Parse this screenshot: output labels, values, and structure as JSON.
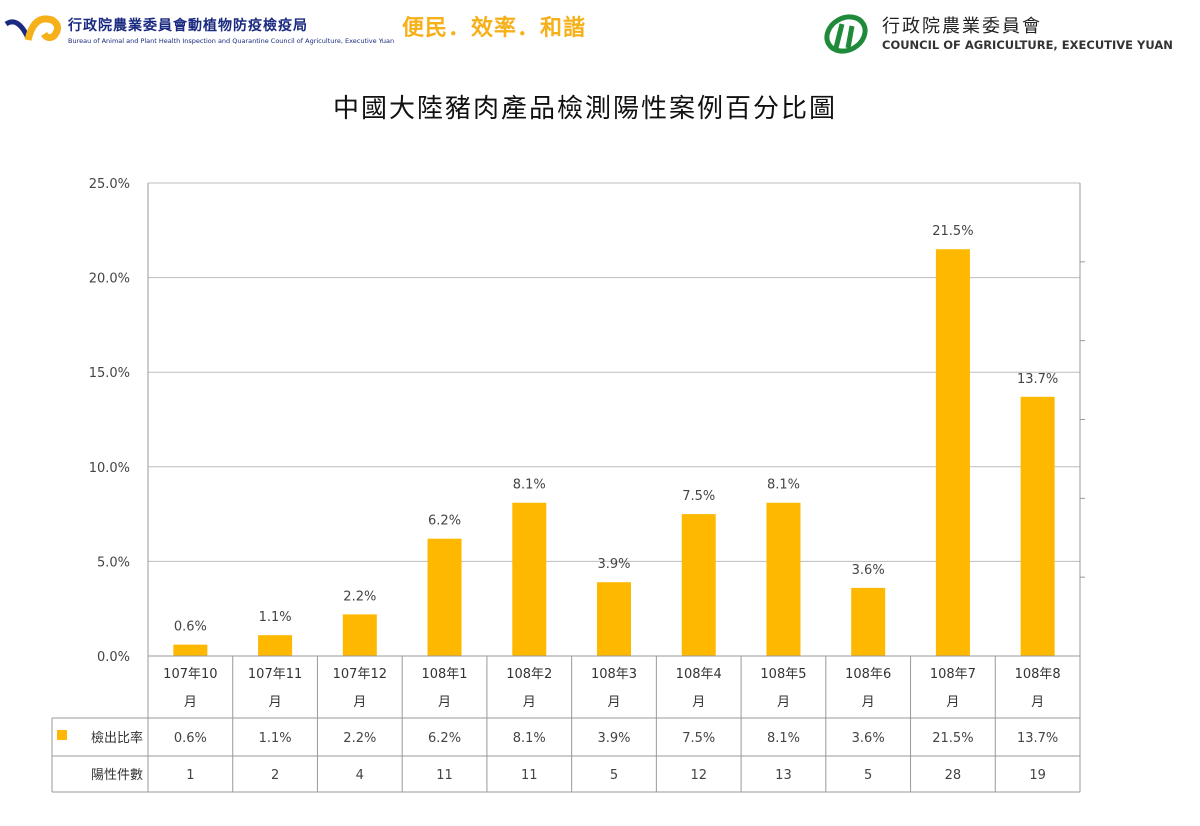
{
  "header": {
    "left_org_zh": "行政院農業委員會動植物防疫檢疫局",
    "left_org_en": "Bureau of Animal and Plant Health Inspection and Quarantine Council of Agriculture, Executive Yuan",
    "slogan": "便民．效率．和諧",
    "right_org_zh": "行政院農業委員會",
    "right_org_en": "COUNCIL OF AGRICULTURE, EXECUTIVE YUAN"
  },
  "chart_data": {
    "type": "bar",
    "title": "中國大陸豬肉產品檢測陽性案例百分比圖",
    "categories": [
      "107年10月",
      "107年11月",
      "107年12月",
      "108年1月",
      "108年2月",
      "108年3月",
      "108年4月",
      "108年5月",
      "108年6月",
      "108年7月",
      "108年8月"
    ],
    "category_lines": [
      [
        "107年10",
        "月"
      ],
      [
        "107年11",
        "月"
      ],
      [
        "107年12",
        "月"
      ],
      [
        "108年1",
        "月"
      ],
      [
        "108年2",
        "月"
      ],
      [
        "108年3",
        "月"
      ],
      [
        "108年4",
        "月"
      ],
      [
        "108年5",
        "月"
      ],
      [
        "108年6",
        "月"
      ],
      [
        "108年7",
        "月"
      ],
      [
        "108年8",
        "月"
      ]
    ],
    "series": [
      {
        "name": "檢出比率",
        "values": [
          0.6,
          1.1,
          2.2,
          6.2,
          8.1,
          3.9,
          7.5,
          8.1,
          3.6,
          21.5,
          13.7
        ],
        "color": "#ffb800"
      }
    ],
    "data_labels": [
      "0.6%",
      "1.1%",
      "2.2%",
      "6.2%",
      "8.1%",
      "3.9%",
      "7.5%",
      "8.1%",
      "3.6%",
      "21.5%",
      "13.7%"
    ],
    "table_rows": [
      {
        "label": "檢出比率",
        "legend_color": "#ffb800",
        "values": [
          "0.6%",
          "1.1%",
          "2.2%",
          "6.2%",
          "8.1%",
          "3.9%",
          "7.5%",
          "8.1%",
          "3.6%",
          "21.5%",
          "13.7%"
        ]
      },
      {
        "label": "陽性件數",
        "values": [
          "1",
          "2",
          "4",
          "11",
          "11",
          "5",
          "12",
          "13",
          "5",
          "28",
          "19"
        ]
      }
    ],
    "ylim": [
      0,
      25
    ],
    "yticks": [
      "0.0%",
      "5.0%",
      "10.0%",
      "15.0%",
      "20.0%",
      "25.0%"
    ],
    "grid": true,
    "legend": "data-table"
  }
}
